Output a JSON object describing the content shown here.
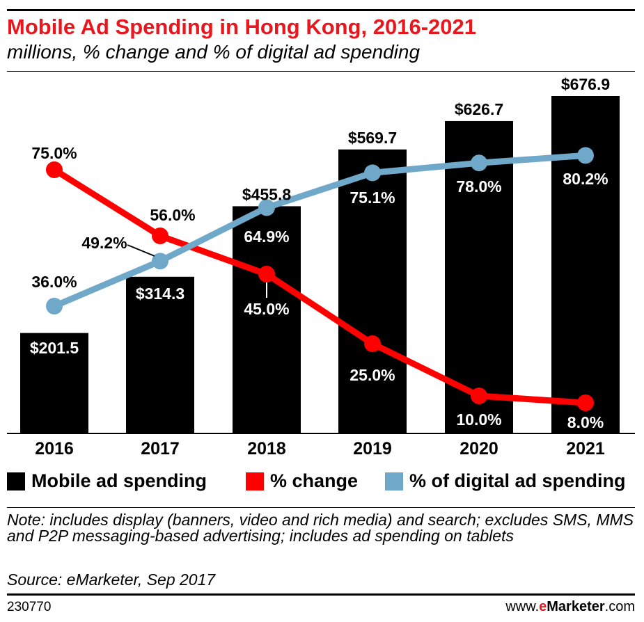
{
  "header": {
    "title": "Mobile Ad Spending in Hong Kong, 2016-2021",
    "subtitle": "millions, % change and % of digital ad spending"
  },
  "chart_data": {
    "type": "bar",
    "categories": [
      "2016",
      "2017",
      "2018",
      "2019",
      "2020",
      "2021"
    ],
    "series": [
      {
        "name": "Mobile ad spending",
        "type": "bar",
        "values": [
          201.5,
          314.3,
          455.8,
          569.7,
          626.7,
          676.9
        ],
        "labels": [
          "$201.5",
          "$314.3",
          "$455.8",
          "$569.7",
          "$626.7",
          "$676.9"
        ],
        "color": "#000000"
      },
      {
        "name": "% change",
        "type": "line",
        "values": [
          75.0,
          56.0,
          45.0,
          25.0,
          10.0,
          8.0
        ],
        "labels": [
          "75.0%",
          "56.0%",
          "45.0%",
          "25.0%",
          "10.0%",
          "8.0%"
        ],
        "color": "#ff0000"
      },
      {
        "name": "% of digital ad spending",
        "type": "line",
        "values": [
          36.0,
          49.2,
          64.9,
          75.1,
          78.0,
          80.2
        ],
        "labels": [
          "36.0%",
          "49.2%",
          "64.9%",
          "75.1%",
          "78.0%",
          "80.2%"
        ],
        "color": "#6fa8c8"
      }
    ],
    "legend_position": "bottom",
    "grid": false
  },
  "legend": [
    {
      "label": "Mobile ad spending",
      "color": "#000000"
    },
    {
      "label": "% change",
      "color": "#ff0000"
    },
    {
      "label": "% of digital ad spending",
      "color": "#6fa8c8"
    }
  ],
  "footer": {
    "note": "Note: includes display (banners, video and rich media) and search; excludes SMS, MMS and P2P messaging-based advertising; includes ad spending on tablets",
    "source": "Source: eMarketer, Sep 2017",
    "chart_id": "230770",
    "brand_prefix": "www.",
    "brand_e": "e",
    "brand_name": "Marketer",
    "brand_suffix": ".com"
  }
}
